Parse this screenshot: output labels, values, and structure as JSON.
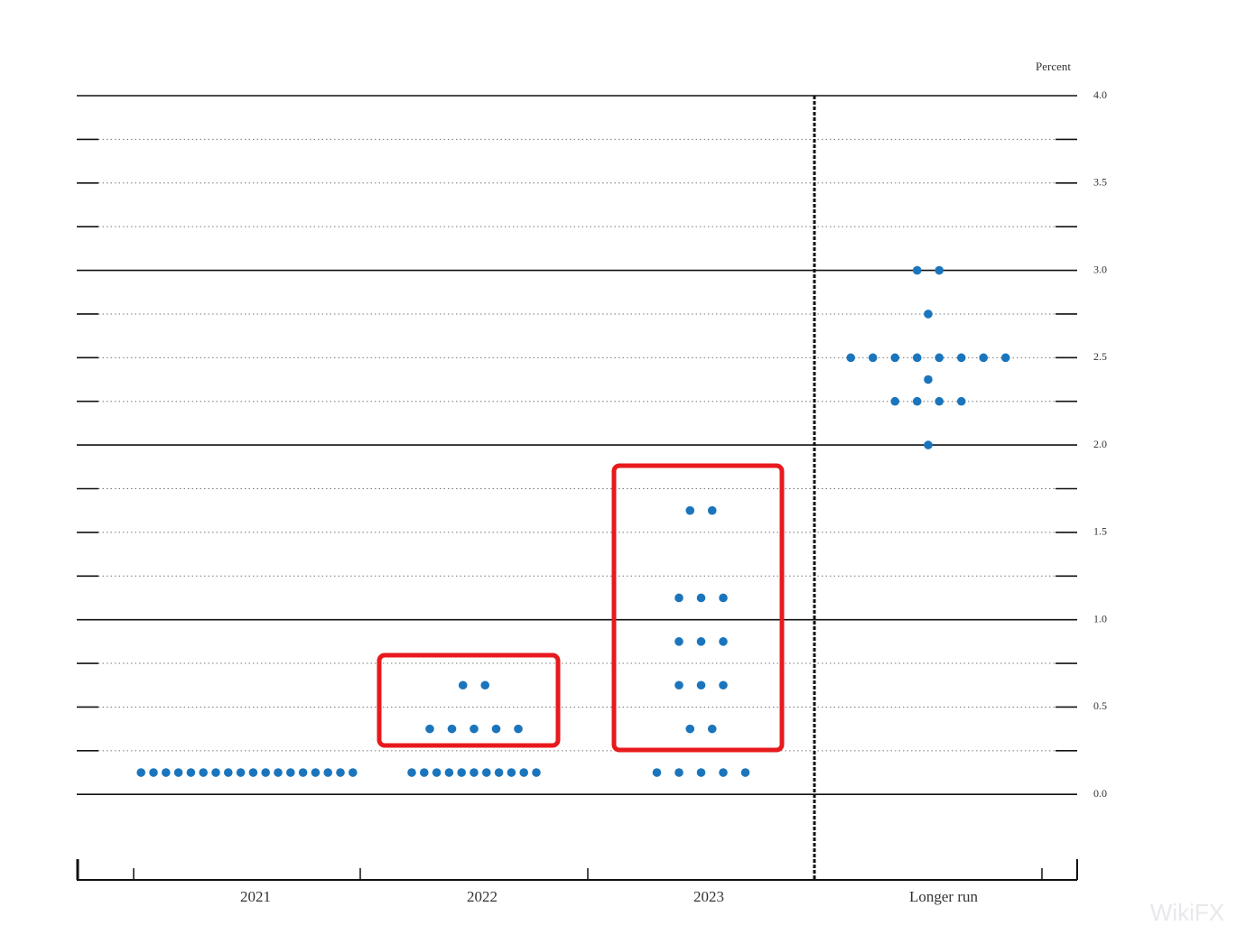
{
  "chart_data": {
    "type": "dot",
    "ylabel": "Percent",
    "categories": [
      "2021",
      "2022",
      "2023",
      "Longer run"
    ],
    "values": [
      [
        0.125,
        0.125,
        0.125,
        0.125,
        0.125,
        0.125,
        0.125,
        0.125,
        0.125,
        0.125,
        0.125,
        0.125,
        0.125,
        0.125,
        0.125,
        0.125,
        0.125,
        0.125
      ],
      [
        0.125,
        0.125,
        0.125,
        0.125,
        0.125,
        0.125,
        0.125,
        0.125,
        0.125,
        0.125,
        0.125,
        0.375,
        0.375,
        0.375,
        0.375,
        0.375,
        0.625,
        0.625
      ],
      [
        0.125,
        0.125,
        0.125,
        0.125,
        0.125,
        0.375,
        0.375,
        0.625,
        0.625,
        0.625,
        0.875,
        0.875,
        0.875,
        1.125,
        1.125,
        1.125,
        1.625,
        1.625
      ],
      [
        2.0,
        2.25,
        2.25,
        2.25,
        2.25,
        2.375,
        2.5,
        2.5,
        2.5,
        2.5,
        2.5,
        2.5,
        2.5,
        2.5,
        2.75,
        3.0,
        3.0
      ]
    ],
    "color": "#1b75bc",
    "ylim": [
      -0.5,
      4
    ],
    "yticks": [
      {
        "value": 0,
        "label": "0.0"
      },
      {
        "value": 0.5,
        "label": "0.5"
      },
      {
        "value": 1,
        "label": "1.0"
      },
      {
        "value": 1.5,
        "label": "1.5"
      },
      {
        "value": 2,
        "label": "2.0"
      },
      {
        "value": 2.5,
        "label": "2.5"
      },
      {
        "value": 3,
        "label": "3.0"
      },
      {
        "value": 3.5,
        "label": "3.5"
      },
      {
        "value": 4,
        "label": "4.0"
      }
    ],
    "minor_yticks": [
      0.25,
      0.75,
      1.25,
      1.75,
      2.25,
      2.75,
      3.25,
      3.75
    ],
    "watermark": "WikiFX"
  }
}
